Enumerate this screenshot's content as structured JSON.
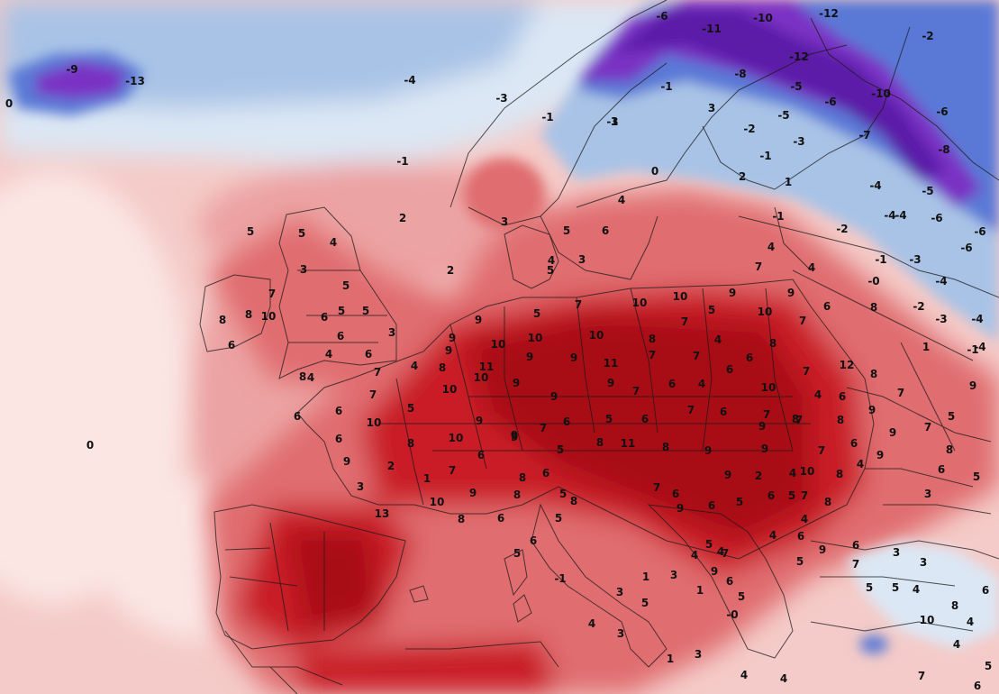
{
  "map": {
    "title": "",
    "legend": "none",
    "colors": {
      "sea_warm": "#f4cbc8",
      "sea_pale": "#fbe6e4",
      "warm_1": "#eca3a3",
      "warm_2": "#e06d70",
      "warm_3": "#c91d26",
      "warm_4": "#a80d16",
      "cold_1": "#dbe7f4",
      "cold_2": "#a9c3e6",
      "cold_3": "#5a79d6",
      "cold_4": "#7a32c4",
      "cold_5": "#5b1ea8",
      "border": "#1a1a1a"
    },
    "labels": [
      {
        "t": "-9"
      },
      {
        "t": "-13"
      },
      {
        "t": "0"
      },
      {
        "t": "-4"
      },
      {
        "t": "-3"
      },
      {
        "t": "-1"
      },
      {
        "t": "2"
      },
      {
        "t": "2"
      },
      {
        "t": "0"
      },
      {
        "t": "-6"
      },
      {
        "t": "-11"
      },
      {
        "t": "-10"
      },
      {
        "t": "-12"
      },
      {
        "t": "-2"
      },
      {
        "t": "-8"
      },
      {
        "t": "-12"
      },
      {
        "t": "-1"
      },
      {
        "t": "-5"
      },
      {
        "t": "-10"
      },
      {
        "t": "-3"
      },
      {
        "t": "-6"
      },
      {
        "t": "-1"
      },
      {
        "t": "1"
      },
      {
        "t": "3"
      },
      {
        "t": "-2"
      },
      {
        "t": "-3"
      },
      {
        "t": "-5"
      },
      {
        "t": "-7"
      },
      {
        "t": "-6"
      },
      {
        "t": "-1"
      },
      {
        "t": "0"
      },
      {
        "t": "2"
      },
      {
        "t": "-8"
      },
      {
        "t": "-4"
      },
      {
        "t": "1"
      },
      {
        "t": "-4"
      },
      {
        "t": "-5"
      },
      {
        "t": "-4"
      },
      {
        "t": "-6"
      },
      {
        "t": "-6"
      },
      {
        "t": "-1"
      },
      {
        "t": "-2"
      },
      {
        "t": "-6"
      },
      {
        "t": "-1"
      },
      {
        "t": "-3"
      },
      {
        "t": "-0"
      },
      {
        "t": "-4"
      },
      {
        "t": "-2"
      },
      {
        "t": "-3"
      },
      {
        "t": "-4"
      },
      {
        "t": "-1"
      },
      {
        "t": "1"
      },
      {
        "t": "-4"
      },
      {
        "t": "4"
      },
      {
        "t": "5"
      },
      {
        "t": "6"
      },
      {
        "t": "3"
      },
      {
        "t": "5"
      },
      {
        "t": "3"
      },
      {
        "t": "4"
      },
      {
        "t": "7"
      },
      {
        "t": "4"
      },
      {
        "t": "4"
      },
      {
        "t": "5"
      },
      {
        "t": "4"
      },
      {
        "t": "3"
      },
      {
        "t": "5"
      },
      {
        "t": "5"
      },
      {
        "t": "6"
      },
      {
        "t": "5"
      },
      {
        "t": "6"
      },
      {
        "t": "3"
      },
      {
        "t": "6"
      },
      {
        "t": "4"
      },
      {
        "t": "4"
      },
      {
        "t": "5"
      },
      {
        "t": "7"
      },
      {
        "t": "8"
      },
      {
        "t": "10"
      },
      {
        "t": "8"
      },
      {
        "t": "6"
      },
      {
        "t": "8"
      },
      {
        "t": "7"
      },
      {
        "t": "4"
      },
      {
        "t": "8"
      },
      {
        "t": "9"
      },
      {
        "t": "9"
      },
      {
        "t": "9"
      },
      {
        "t": "10"
      },
      {
        "t": "5"
      },
      {
        "t": "7"
      },
      {
        "t": "10"
      },
      {
        "t": "10"
      },
      {
        "t": "9"
      },
      {
        "t": "9"
      },
      {
        "t": "10"
      },
      {
        "t": "7"
      },
      {
        "t": "6"
      },
      {
        "t": "8"
      },
      {
        "t": "11"
      },
      {
        "t": "9"
      },
      {
        "t": "10"
      },
      {
        "t": "11"
      },
      {
        "t": "9"
      },
      {
        "t": "10"
      },
      {
        "t": "8"
      },
      {
        "t": "7"
      },
      {
        "t": "5"
      },
      {
        "t": "4"
      },
      {
        "t": "7"
      },
      {
        "t": "7"
      },
      {
        "t": "6"
      },
      {
        "t": "8"
      },
      {
        "t": "10"
      },
      {
        "t": "7"
      },
      {
        "t": "12"
      },
      {
        "t": "8"
      },
      {
        "t": "7"
      },
      {
        "t": "6"
      },
      {
        "t": "4"
      },
      {
        "t": "8"
      },
      {
        "t": "8"
      },
      {
        "t": "9"
      },
      {
        "t": "9"
      },
      {
        "t": "7"
      },
      {
        "t": "5"
      },
      {
        "t": "9"
      },
      {
        "t": "8"
      },
      {
        "t": "6"
      },
      {
        "t": "5"
      },
      {
        "t": "3"
      },
      {
        "t": "7"
      },
      {
        "t": "6"
      },
      {
        "t": "5"
      },
      {
        "t": "10"
      },
      {
        "t": "10"
      },
      {
        "t": "9"
      },
      {
        "t": "9"
      },
      {
        "t": "9"
      },
      {
        "t": "7"
      },
      {
        "t": "6"
      },
      {
        "t": "4"
      },
      {
        "t": "6"
      },
      {
        "t": "7"
      },
      {
        "t": "6"
      },
      {
        "t": "6"
      },
      {
        "t": "10"
      },
      {
        "t": "8"
      },
      {
        "t": "10"
      },
      {
        "t": "9"
      },
      {
        "t": "9"
      },
      {
        "t": "7"
      },
      {
        "t": "6"
      },
      {
        "t": "5"
      },
      {
        "t": "6"
      },
      {
        "t": "7"
      },
      {
        "t": "6"
      },
      {
        "t": "9"
      },
      {
        "t": "7"
      },
      {
        "t": "7"
      },
      {
        "t": "10"
      },
      {
        "t": "6"
      },
      {
        "t": "9"
      },
      {
        "t": "9"
      },
      {
        "t": "3"
      },
      {
        "t": "2"
      },
      {
        "t": "1"
      },
      {
        "t": "7"
      },
      {
        "t": "6"
      },
      {
        "t": "9"
      },
      {
        "t": "5"
      },
      {
        "t": "8"
      },
      {
        "t": "11"
      },
      {
        "t": "8"
      },
      {
        "t": "9"
      },
      {
        "t": "9"
      },
      {
        "t": "9"
      },
      {
        "t": "4"
      },
      {
        "t": "2"
      },
      {
        "t": "5"
      },
      {
        "t": "8"
      },
      {
        "t": "4"
      },
      {
        "t": "13"
      },
      {
        "t": "10"
      },
      {
        "t": "9"
      },
      {
        "t": "8"
      },
      {
        "t": "6"
      },
      {
        "t": "5"
      },
      {
        "t": "8"
      },
      {
        "t": "8"
      },
      {
        "t": "6"
      },
      {
        "t": "5"
      },
      {
        "t": "8"
      },
      {
        "t": "6"
      },
      {
        "t": "7"
      },
      {
        "t": "9"
      },
      {
        "t": "6"
      },
      {
        "t": "5"
      },
      {
        "t": "6"
      },
      {
        "t": "7"
      },
      {
        "t": "8"
      },
      {
        "t": "4"
      },
      {
        "t": "4"
      },
      {
        "t": "6"
      },
      {
        "t": "5"
      },
      {
        "t": "9"
      },
      {
        "t": "7"
      },
      {
        "t": "3"
      },
      {
        "t": "3"
      },
      {
        "t": "6"
      },
      {
        "t": "5"
      },
      {
        "t": "5"
      },
      {
        "t": "4"
      },
      {
        "t": "6"
      },
      {
        "t": "10"
      },
      {
        "t": "8"
      },
      {
        "t": "4"
      },
      {
        "t": "4"
      },
      {
        "t": "7"
      },
      {
        "t": "5"
      },
      {
        "t": "6"
      },
      {
        "t": "4"
      },
      {
        "t": "4"
      },
      {
        "t": "1"
      },
      {
        "t": "3"
      },
      {
        "t": "-0"
      },
      {
        "t": "5"
      },
      {
        "t": "6"
      },
      {
        "t": "9"
      },
      {
        "t": "5"
      },
      {
        "t": "4"
      },
      {
        "t": "4"
      },
      {
        "t": "1"
      },
      {
        "t": "7"
      },
      {
        "t": "3"
      },
      {
        "t": "1"
      },
      {
        "t": "3"
      },
      {
        "t": "5"
      },
      {
        "t": "3"
      },
      {
        "t": "-1"
      },
      {
        "t": "5"
      },
      {
        "t": "6"
      },
      {
        "t": "4"
      },
      {
        "t": "6"
      },
      {
        "t": "4"
      },
      {
        "t": "7"
      },
      {
        "t": "7"
      },
      {
        "t": "8"
      },
      {
        "t": "6"
      },
      {
        "t": "8"
      },
      {
        "t": "7"
      },
      {
        "t": "7"
      },
      {
        "t": "8"
      },
      {
        "t": "5"
      },
      {
        "t": "4"
      },
      {
        "t": "1"
      },
      {
        "t": "1"
      },
      {
        "t": "2"
      },
      {
        "t": "-0"
      },
      {
        "t": "4"
      },
      {
        "t": "6"
      }
    ]
  }
}
